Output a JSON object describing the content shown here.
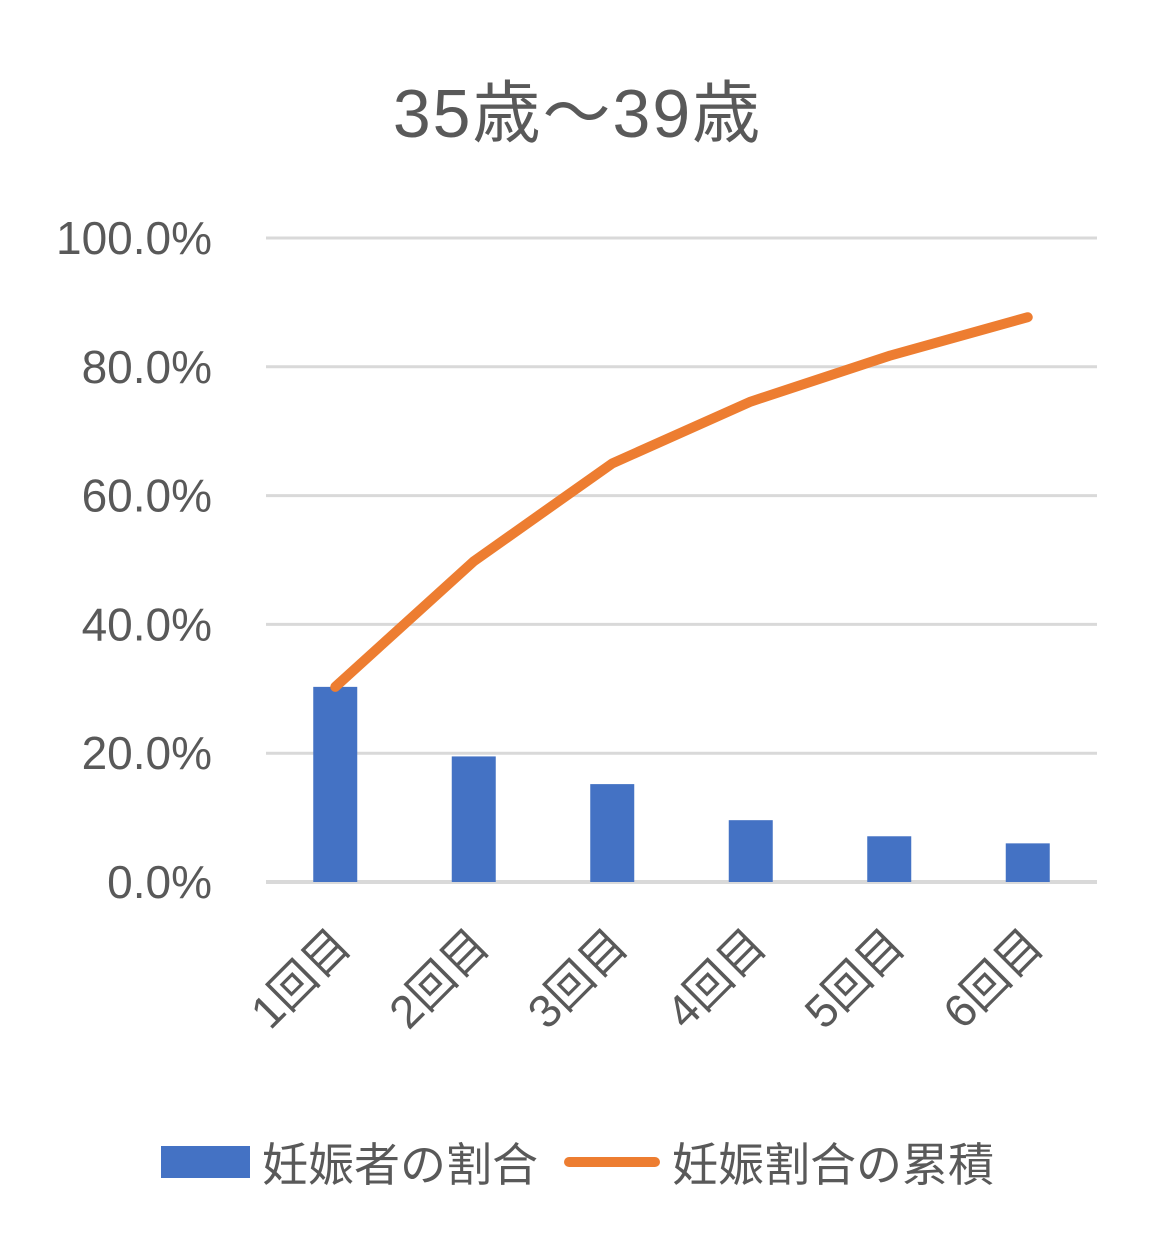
{
  "chart_data": {
    "type": "bar",
    "subtype": "pareto-bar-plus-cumulative-line",
    "title": "35歳～39歳",
    "xlabel": "",
    "ylabel": "",
    "categories": [
      "1回目",
      "2回目",
      "3回目",
      "4回目",
      "5回目",
      "6回目"
    ],
    "series": [
      {
        "name": "妊娠者の割合",
        "type": "bar",
        "color": "#4472C4",
        "values": [
          30.3,
          19.5,
          15.2,
          9.6,
          7.1,
          6.0
        ]
      },
      {
        "name": "妊娠割合の累積",
        "type": "line",
        "color": "#ED7D31",
        "values": [
          30.3,
          49.8,
          65.0,
          74.6,
          81.7,
          87.7
        ]
      }
    ],
    "ylim": [
      0,
      100
    ],
    "yticks": {
      "values": [
        0,
        20,
        40,
        60,
        80,
        100
      ],
      "labels": [
        "0.0%",
        "20.0%",
        "40.0%",
        "60.0%",
        "80.0%",
        "100.0%"
      ]
    },
    "grid": "horizontal",
    "legend_position": "bottom",
    "colors": {
      "text": "#595959",
      "gridline": "#D9D9D9",
      "axis_line": "#D9D9D9",
      "background": "#FFFFFF"
    }
  }
}
